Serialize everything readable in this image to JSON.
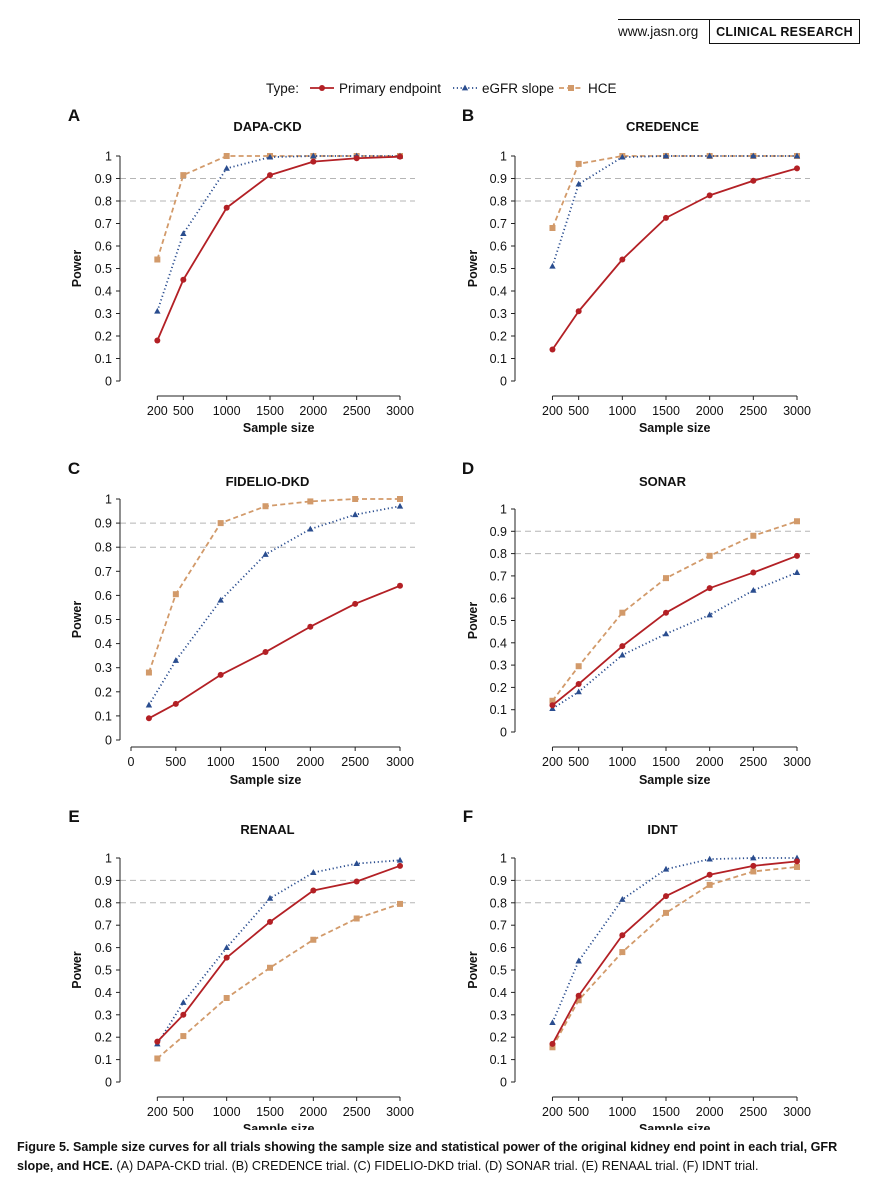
{
  "header": {
    "url": "www.jasn.org",
    "section": "CLINICAL RESEARCH"
  },
  "legend": {
    "title": "Type:",
    "items": [
      {
        "name": "Primary endpoint",
        "color": "#b32025",
        "marker": "circle",
        "line": "solid"
      },
      {
        "name": "eGFR slope",
        "color": "#2a4d8f",
        "marker": "triangle",
        "line": "dotted"
      },
      {
        "name": "HCE",
        "color": "#d29a6a",
        "marker": "square",
        "line": "dashed"
      }
    ]
  },
  "caption": {
    "bold": "Figure 5.  Sample size curves for all trials showing the sample size and statistical power of the original kidney end point in each trial, GFR slope, and HCE.",
    "rest": " (A) DAPA-CKD trial. (B) CREDENCE trial. (C) FIDELIO-DKD trial. (D) SONAR trial. (E) RENAAL trial. (F) IDNT trial."
  },
  "chart_data": [
    {
      "type": "line",
      "panel": "A",
      "title": "DAPA-CKD",
      "xlabel": "Sample size",
      "ylabel": "Power",
      "xticks": [
        200,
        500,
        1000,
        1500,
        2000,
        2500,
        3000
      ],
      "xlim": [
        0,
        3000
      ],
      "ylim": [
        0,
        1
      ],
      "yticks": [
        "0",
        "0.1",
        "0.2",
        "0.3",
        "0.4",
        "0.5",
        "0.6",
        "0.7",
        "0.8",
        "0.9",
        "1"
      ],
      "reference_lines": [
        0.8,
        0.9
      ],
      "x": [
        200,
        500,
        1000,
        1500,
        2000,
        2500,
        3000
      ],
      "series": [
        {
          "name": "Primary endpoint",
          "values": [
            0.18,
            0.45,
            0.77,
            0.915,
            0.975,
            0.99,
            0.997
          ]
        },
        {
          "name": "eGFR slope",
          "values": [
            0.31,
            0.655,
            0.945,
            0.995,
            1.0,
            1.0,
            1.0
          ]
        },
        {
          "name": "HCE",
          "values": [
            0.54,
            0.915,
            1.0,
            1.0,
            1.0,
            1.0,
            1.0
          ]
        }
      ]
    },
    {
      "type": "line",
      "panel": "B",
      "title": "CREDENCE",
      "xlabel": "Sample size",
      "ylabel": "Power",
      "xticks": [
        200,
        500,
        1000,
        1500,
        2000,
        2500,
        3000
      ],
      "xlim": [
        0,
        3000
      ],
      "ylim": [
        0,
        1
      ],
      "yticks": [
        "0",
        "0.1",
        "0.2",
        "0.3",
        "0.4",
        "0.5",
        "0.6",
        "0.7",
        "0.8",
        "0.9",
        "1"
      ],
      "reference_lines": [
        0.8,
        0.9
      ],
      "x": [
        200,
        500,
        1000,
        1500,
        2000,
        2500,
        3000
      ],
      "series": [
        {
          "name": "Primary endpoint",
          "values": [
            0.14,
            0.31,
            0.54,
            0.725,
            0.825,
            0.89,
            0.945
          ]
        },
        {
          "name": "eGFR slope",
          "values": [
            0.51,
            0.875,
            0.995,
            1.0,
            1.0,
            1.0,
            1.0
          ]
        },
        {
          "name": "HCE",
          "values": [
            0.68,
            0.965,
            1.0,
            1.0,
            1.0,
            1.0,
            1.0
          ]
        }
      ]
    },
    {
      "type": "line",
      "panel": "C",
      "title": "FIDELIO-DKD",
      "xlabel": "Sample size",
      "ylabel": "Power",
      "xticks": [
        0,
        500,
        1000,
        1500,
        2000,
        2500,
        3000
      ],
      "xlim": [
        0,
        3000
      ],
      "ylim": [
        0,
        1
      ],
      "yticks": [
        "0",
        "0.1",
        "0.2",
        "0.3",
        "0.4",
        "0.5",
        "0.6",
        "0.7",
        "0.8",
        "0.9",
        "1"
      ],
      "reference_lines": [
        0.8,
        0.9
      ],
      "x": [
        200,
        500,
        1000,
        1500,
        2000,
        2500,
        3000
      ],
      "series": [
        {
          "name": "Primary endpoint",
          "values": [
            0.09,
            0.15,
            0.27,
            0.365,
            0.47,
            0.565,
            0.64
          ]
        },
        {
          "name": "eGFR slope",
          "values": [
            0.145,
            0.33,
            0.58,
            0.77,
            0.875,
            0.935,
            0.97
          ]
        },
        {
          "name": "HCE",
          "values": [
            0.28,
            0.605,
            0.9,
            0.97,
            0.99,
            1.0,
            1.0
          ]
        }
      ]
    },
    {
      "type": "line",
      "panel": "D",
      "title": "SONAR",
      "xlabel": "Sample size",
      "ylabel": "Power",
      "xticks": [
        200,
        500,
        1000,
        1500,
        2000,
        2500,
        3000
      ],
      "xlim": [
        0,
        3000
      ],
      "ylim": [
        0,
        1
      ],
      "yticks": [
        "0",
        "0.1",
        "0.2",
        "0.3",
        "0.4",
        "0.5",
        "0.6",
        "0.7",
        "0.8",
        "0.9",
        "1"
      ],
      "reference_lines": [
        0.8,
        0.9
      ],
      "x": [
        200,
        500,
        1000,
        1500,
        2000,
        2500,
        3000
      ],
      "series": [
        {
          "name": "Primary endpoint",
          "values": [
            0.12,
            0.215,
            0.385,
            0.535,
            0.645,
            0.715,
            0.79
          ]
        },
        {
          "name": "eGFR slope",
          "values": [
            0.105,
            0.18,
            0.345,
            0.44,
            0.525,
            0.635,
            0.715
          ]
        },
        {
          "name": "HCE",
          "values": [
            0.14,
            0.295,
            0.535,
            0.69,
            0.79,
            0.88,
            0.945
          ]
        }
      ]
    },
    {
      "type": "line",
      "panel": "E",
      "title": "RENAAL",
      "xlabel": "Sample size",
      "ylabel": "Power",
      "xticks": [
        200,
        500,
        1000,
        1500,
        2000,
        2500,
        3000
      ],
      "xlim": [
        0,
        3000
      ],
      "ylim": [
        0,
        1
      ],
      "yticks": [
        "0",
        "0.1",
        "0.2",
        "0.3",
        "0.4",
        "0.5",
        "0.6",
        "0.7",
        "0.8",
        "0.9",
        "1"
      ],
      "reference_lines": [
        0.8,
        0.9
      ],
      "x": [
        200,
        500,
        1000,
        1500,
        2000,
        2500,
        3000
      ],
      "series": [
        {
          "name": "Primary endpoint",
          "values": [
            0.18,
            0.3,
            0.555,
            0.715,
            0.855,
            0.895,
            0.965
          ]
        },
        {
          "name": "eGFR slope",
          "values": [
            0.17,
            0.355,
            0.6,
            0.82,
            0.935,
            0.975,
            0.99
          ]
        },
        {
          "name": "HCE",
          "values": [
            0.105,
            0.205,
            0.375,
            0.51,
            0.635,
            0.73,
            0.795
          ]
        }
      ]
    },
    {
      "type": "line",
      "panel": "F",
      "title": "IDNT",
      "xlabel": "Sample size",
      "ylabel": "Power",
      "xticks": [
        200,
        500,
        1000,
        1500,
        2000,
        2500,
        3000
      ],
      "xlim": [
        0,
        3000
      ],
      "ylim": [
        0,
        1
      ],
      "yticks": [
        "0",
        "0.1",
        "0.2",
        "0.3",
        "0.4",
        "0.5",
        "0.6",
        "0.7",
        "0.8",
        "0.9",
        "1"
      ],
      "reference_lines": [
        0.8,
        0.9
      ],
      "x": [
        200,
        500,
        1000,
        1500,
        2000,
        2500,
        3000
      ],
      "series": [
        {
          "name": "Primary endpoint",
          "values": [
            0.17,
            0.385,
            0.655,
            0.83,
            0.925,
            0.965,
            0.985
          ]
        },
        {
          "name": "eGFR slope",
          "values": [
            0.265,
            0.54,
            0.815,
            0.95,
            0.995,
            1.0,
            1.0
          ]
        },
        {
          "name": "HCE",
          "values": [
            0.155,
            0.365,
            0.58,
            0.755,
            0.88,
            0.94,
            0.96
          ]
        }
      ]
    }
  ]
}
